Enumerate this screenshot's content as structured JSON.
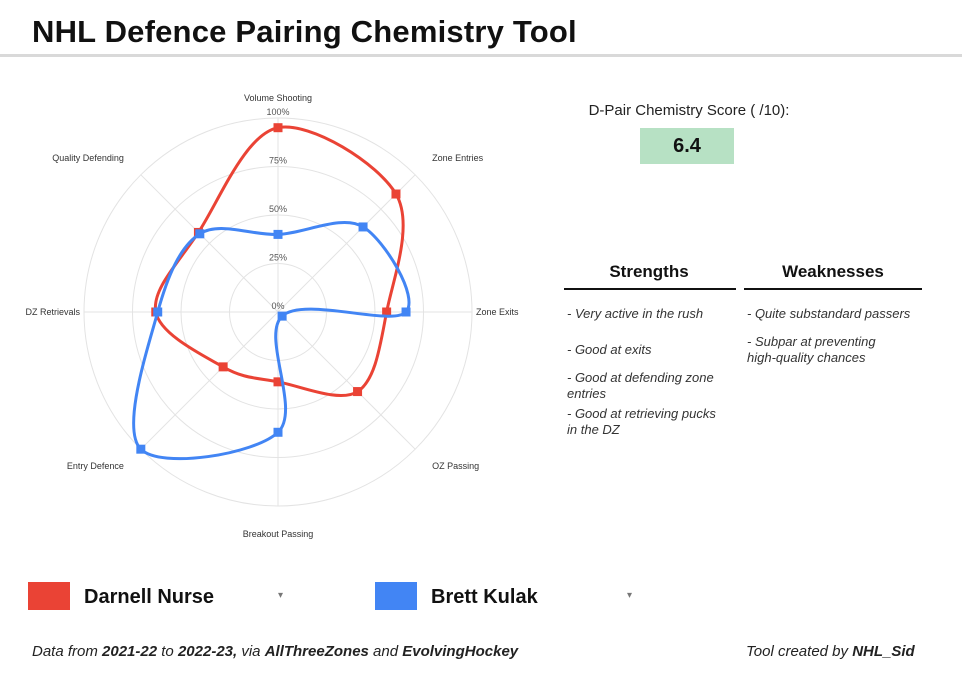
{
  "header": {
    "title": "NHL Defence Pairing Chemistry Tool"
  },
  "chart_data": {
    "type": "radar",
    "axes": [
      "Volume Shooting",
      "Zone Entries",
      "Zone Exits",
      "OZ Passing",
      "Breakout Passing",
      "Entry Defence",
      "DZ Retrievals",
      "Quality Defending"
    ],
    "rticks": [
      "0%",
      "25%",
      "50%",
      "75%",
      "100%"
    ],
    "rlim": [
      0,
      100
    ],
    "grid": true,
    "series": [
      {
        "name": "Darnell Nurse",
        "color": "#ea4335",
        "values": [
          95,
          86,
          56,
          58,
          36,
          40,
          63,
          58
        ]
      },
      {
        "name": "Brett Kulak",
        "color": "#4285f4",
        "values": [
          40,
          62,
          66,
          3,
          62,
          100,
          62,
          57
        ]
      }
    ]
  },
  "score": {
    "label": "D-Pair Chemistry Score ( /10):",
    "value": "6.4"
  },
  "strengths": {
    "title": "Strengths",
    "items": [
      "- Very active in the rush",
      "- Good at exits",
      "- Good at defending zone entries",
      "- Good at retrieving pucks in the DZ"
    ]
  },
  "weaknesses": {
    "title": "Weaknesses",
    "items": [
      "- Quite substandard passers",
      "- Subpar at preventing high-quality chances"
    ]
  },
  "players": {
    "a": {
      "name": "Darnell Nurse",
      "color": "#ea4335"
    },
    "b": {
      "name": "Brett Kulak",
      "color": "#4285f4"
    },
    "dropdown_glyph": "▾"
  },
  "footer": {
    "p1": "Data from ",
    "from": "2021-22",
    "p2": " to ",
    "to": "2022-23,",
    "p3": " via ",
    "src1": "AllThreeZones",
    "p4": " and ",
    "src2": "EvolvingHockey",
    "credit_prefix": "Tool created by ",
    "credit_name": "NHL_Sid"
  }
}
